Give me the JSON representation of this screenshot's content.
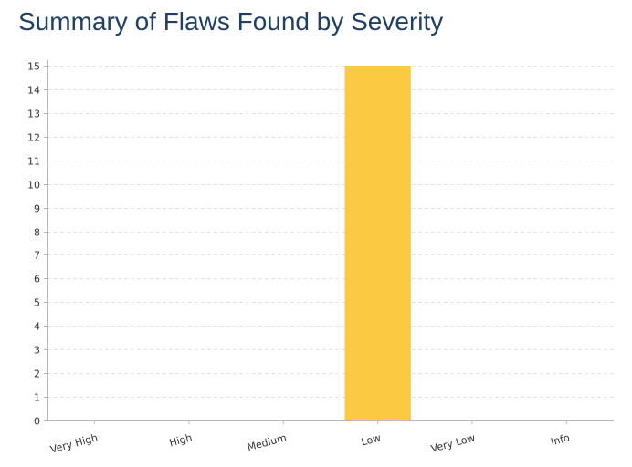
{
  "chart_data": {
    "type": "bar",
    "title": "Summary of Flaws Found by Severity",
    "categories": [
      "Very High",
      "High",
      "Medium",
      "Low",
      "Very Low",
      "Info"
    ],
    "values": [
      0,
      0,
      0,
      15,
      0,
      0
    ],
    "xlabel": "",
    "ylabel": "",
    "ylim": [
      0,
      15
    ],
    "yticks": [
      0,
      1,
      2,
      3,
      4,
      5,
      6,
      7,
      8,
      9,
      10,
      11,
      12,
      13,
      14,
      15
    ],
    "grid": true,
    "legend": "none",
    "colors": {
      "bar": "#fbca42",
      "title": "#1f3f66",
      "grid": "#e3e3e3",
      "axis": "#b8b8b8"
    }
  }
}
